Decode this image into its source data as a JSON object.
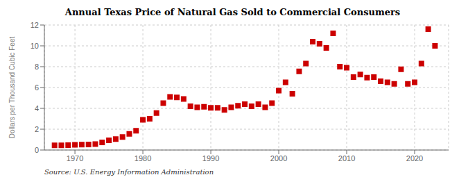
{
  "chart_data": {
    "type": "scatter",
    "title": "Annual Texas Price of Natural Gas Sold to Commercial Consumers",
    "ylabel": "Dollars per Thousand Cubic Feet",
    "annotations": [
      "Source: U.S. Energy Information Administration"
    ],
    "x": [
      1967,
      1968,
      1969,
      1970,
      1971,
      1972,
      1973,
      1974,
      1975,
      1976,
      1977,
      1978,
      1979,
      1980,
      1981,
      1982,
      1983,
      1984,
      1985,
      1986,
      1987,
      1988,
      1989,
      1990,
      1991,
      1992,
      1993,
      1994,
      1995,
      1996,
      1997,
      1998,
      1999,
      2000,
      2001,
      2002,
      2003,
      2004,
      2005,
      2006,
      2007,
      2008,
      2009,
      2010,
      2011,
      2012,
      2013,
      2014,
      2015,
      2016,
      2017,
      2018,
      2019,
      2020,
      2021,
      2022,
      2023
    ],
    "values": [
      0.45,
      0.45,
      0.47,
      0.5,
      0.52,
      0.53,
      0.57,
      0.73,
      0.93,
      1.05,
      1.25,
      1.55,
      1.85,
      2.9,
      3.0,
      3.55,
      4.5,
      5.1,
      5.05,
      4.9,
      4.2,
      4.1,
      4.15,
      4.05,
      4.05,
      3.85,
      4.1,
      4.25,
      4.4,
      4.2,
      4.4,
      4.1,
      4.5,
      5.7,
      6.5,
      5.4,
      7.55,
      8.3,
      10.4,
      10.2,
      9.8,
      11.2,
      8.0,
      7.9,
      7.0,
      7.25,
      6.95,
      7.0,
      6.6,
      6.5,
      6.35,
      7.75,
      6.35,
      6.5,
      8.3,
      11.6,
      10.0
    ],
    "color": "#cc0000",
    "marker": "square",
    "xlim": [
      1965.5,
      2025
    ],
    "xticks": [
      1970,
      1980,
      1990,
      2000,
      2010,
      2020
    ],
    "ylim": [
      0,
      12
    ],
    "yticks": [
      0,
      2,
      4,
      6,
      8,
      10,
      12
    ],
    "grid": true
  }
}
